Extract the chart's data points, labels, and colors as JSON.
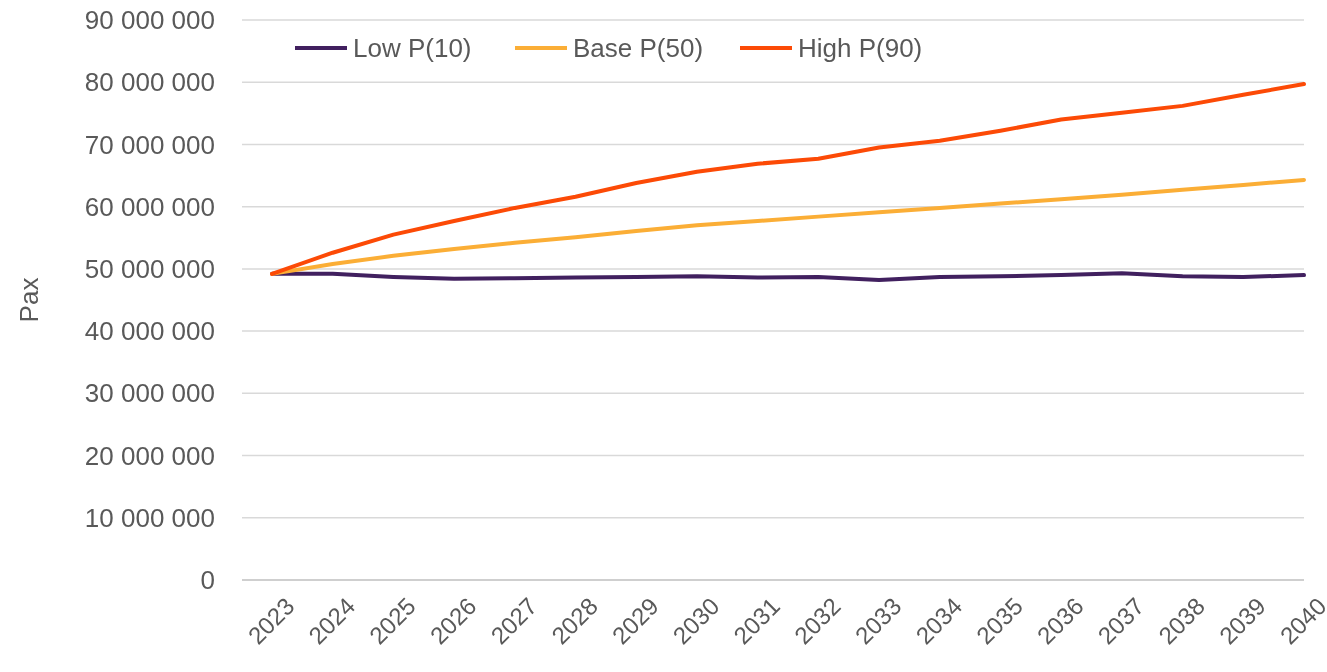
{
  "chart_data": {
    "type": "line",
    "ylabel": "Pax",
    "categories": [
      "2023",
      "2024",
      "2025",
      "2026",
      "2027",
      "2028",
      "2029",
      "2030",
      "2031",
      "2032",
      "2033",
      "2034",
      "2035",
      "2036",
      "2037",
      "2038",
      "2039",
      "2040"
    ],
    "series": [
      {
        "name": "Low P(10)",
        "color": "#41205f",
        "values": [
          49200000,
          49200000,
          48700000,
          48400000,
          48500000,
          48600000,
          48700000,
          48800000,
          48600000,
          48700000,
          48200000,
          48700000,
          48800000,
          49000000,
          49300000,
          48800000,
          48700000,
          49000000
        ]
      },
      {
        "name": "Base P(50)",
        "color": "#fbae36",
        "values": [
          49200000,
          50800000,
          52100000,
          53200000,
          54200000,
          55100000,
          56100000,
          57000000,
          57700000,
          58400000,
          59100000,
          59800000,
          60500000,
          61200000,
          61900000,
          62700000,
          63500000,
          64300000
        ]
      },
      {
        "name": "High P(90)",
        "color": "#fc4a06",
        "values": [
          49200000,
          52600000,
          55500000,
          57700000,
          59800000,
          61600000,
          63800000,
          65600000,
          66900000,
          67700000,
          69500000,
          70600000,
          72200000,
          74000000,
          75100000,
          76200000,
          78000000,
          79700000
        ]
      }
    ],
    "ylim": [
      0,
      90000000
    ],
    "yticks": [
      0,
      {
        "value": 10000000,
        "label": "10 000 000"
      },
      {
        "value": 20000000,
        "label": "20 000 000"
      },
      {
        "value": 30000000,
        "label": "30 000 000"
      },
      {
        "value": 40000000,
        "label": "40 000 000"
      },
      {
        "value": 50000000,
        "label": "50 000 000"
      },
      {
        "value": 60000000,
        "label": "60 000 000"
      },
      {
        "value": 70000000,
        "label": "70 000 000"
      },
      {
        "value": 80000000,
        "label": "80 000 000"
      },
      {
        "value": 90000000,
        "label": "90 000 000"
      }
    ],
    "grid": "y",
    "legend": "top left",
    "marker": "none",
    "line_style": "solid"
  }
}
